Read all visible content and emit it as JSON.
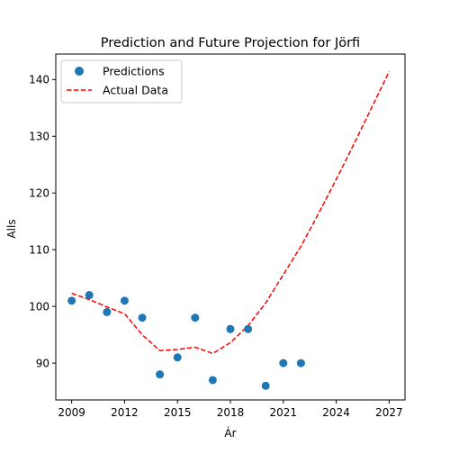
{
  "chart_data": {
    "type": "line",
    "title": "Prediction and Future Projection for Jörfi",
    "xlabel": "Ár",
    "ylabel": "Alls",
    "xlim": [
      2008.1,
      2027.9
    ],
    "ylim": [
      83.5,
      144.5
    ],
    "xticks": [
      2009,
      2012,
      2015,
      2018,
      2021,
      2024,
      2027
    ],
    "yticks": [
      90,
      100,
      110,
      120,
      130,
      140
    ],
    "grid": false,
    "legend_position": "top-left",
    "series": [
      {
        "name": "Predictions",
        "kind": "scatter",
        "color": "#1f77b4",
        "x": [
          2009,
          2010,
          2011,
          2012,
          2013,
          2014,
          2015,
          2016,
          2017,
          2018,
          2019,
          2020,
          2021,
          2022
        ],
        "y": [
          101,
          102,
          99,
          101,
          98,
          88,
          91,
          98,
          87,
          96,
          96,
          86,
          90,
          90
        ]
      },
      {
        "name": "Actual Data",
        "kind": "line",
        "style": "dashed",
        "color": "#ff0000",
        "x": [
          2009,
          2010,
          2011,
          2012,
          2013,
          2014,
          2015,
          2016,
          2017,
          2018,
          2019,
          2020,
          2021,
          2022,
          2023,
          2024,
          2025,
          2026,
          2027
        ],
        "y": [
          102.3,
          101.2,
          99.9,
          98.7,
          95.0,
          92.2,
          92.4,
          92.8,
          91.7,
          93.6,
          96.6,
          100.6,
          105.6,
          110.6,
          116.4,
          122.4,
          128.6,
          135.0,
          141.4
        ]
      }
    ]
  }
}
